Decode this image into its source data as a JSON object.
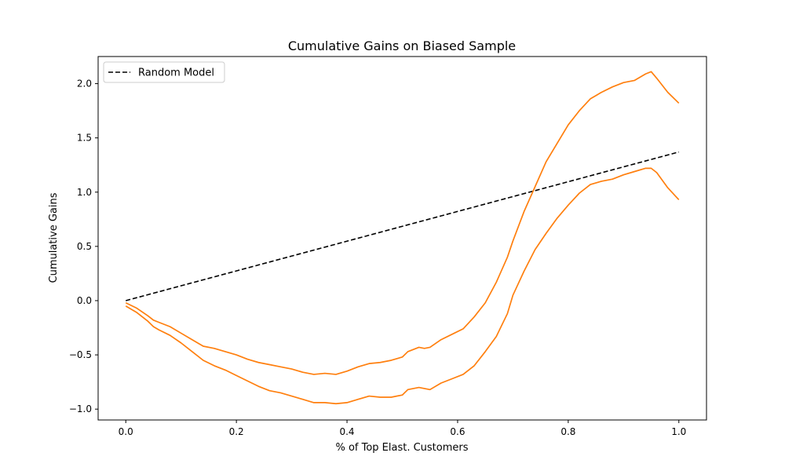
{
  "chart_data": {
    "type": "line",
    "title": "Cumulative Gains on Biased Sample",
    "xlabel": "% of Top Elast. Customers",
    "ylabel": "Cumulative Gains",
    "xlim": [
      -0.05,
      1.05
    ],
    "ylim": [
      -1.1,
      2.25
    ],
    "x_ticks": [
      0.0,
      0.2,
      0.4,
      0.6,
      0.8,
      1.0
    ],
    "x_tick_labels": [
      "0.0",
      "0.2",
      "0.4",
      "0.6",
      "0.8",
      "1.0"
    ],
    "y_ticks": [
      -1.0,
      -0.5,
      0.0,
      0.5,
      1.0,
      1.5,
      2.0
    ],
    "y_tick_labels": [
      "−1.0",
      "−0.5",
      "0.0",
      "0.5",
      "1.0",
      "1.5",
      "2.0"
    ],
    "grid": false,
    "legend_position": "top-left",
    "legend_entries": [
      "Random Model"
    ],
    "series": [
      {
        "name": "Random Model",
        "color": "#000000",
        "style": "dashed",
        "x": [
          0.0,
          1.0
        ],
        "y": [
          0.0,
          1.37
        ]
      },
      {
        "color": "#ff7f0e",
        "style": "solid",
        "x": [
          0.0,
          0.02,
          0.04,
          0.05,
          0.06,
          0.08,
          0.1,
          0.12,
          0.14,
          0.16,
          0.18,
          0.2,
          0.22,
          0.24,
          0.26,
          0.28,
          0.3,
          0.32,
          0.34,
          0.36,
          0.38,
          0.4,
          0.42,
          0.44,
          0.46,
          0.48,
          0.5,
          0.51,
          0.53,
          0.54,
          0.55,
          0.57,
          0.59,
          0.61,
          0.63,
          0.65,
          0.67,
          0.69,
          0.7,
          0.72,
          0.74,
          0.76,
          0.78,
          0.8,
          0.82,
          0.84,
          0.86,
          0.88,
          0.9,
          0.92,
          0.94,
          0.95,
          0.96,
          0.98,
          1.0
        ],
        "y": [
          -0.02,
          -0.07,
          -0.14,
          -0.18,
          -0.2,
          -0.24,
          -0.3,
          -0.36,
          -0.42,
          -0.44,
          -0.47,
          -0.5,
          -0.54,
          -0.57,
          -0.59,
          -0.61,
          -0.63,
          -0.66,
          -0.68,
          -0.67,
          -0.68,
          -0.65,
          -0.61,
          -0.58,
          -0.57,
          -0.55,
          -0.52,
          -0.47,
          -0.43,
          -0.44,
          -0.43,
          -0.36,
          -0.31,
          -0.26,
          -0.15,
          -0.02,
          0.17,
          0.4,
          0.55,
          0.82,
          1.05,
          1.28,
          1.45,
          1.62,
          1.75,
          1.86,
          1.92,
          1.97,
          2.01,
          2.03,
          2.09,
          2.11,
          2.05,
          1.92,
          1.82
        ]
      },
      {
        "color": "#ff7f0e",
        "style": "solid",
        "x": [
          0.0,
          0.02,
          0.04,
          0.05,
          0.06,
          0.08,
          0.1,
          0.12,
          0.14,
          0.16,
          0.18,
          0.2,
          0.22,
          0.24,
          0.26,
          0.28,
          0.3,
          0.32,
          0.34,
          0.36,
          0.38,
          0.4,
          0.42,
          0.44,
          0.46,
          0.48,
          0.5,
          0.51,
          0.53,
          0.54,
          0.55,
          0.57,
          0.59,
          0.61,
          0.63,
          0.65,
          0.67,
          0.69,
          0.7,
          0.72,
          0.74,
          0.76,
          0.78,
          0.8,
          0.82,
          0.84,
          0.86,
          0.88,
          0.9,
          0.92,
          0.94,
          0.95,
          0.96,
          0.98,
          1.0
        ],
        "y": [
          -0.05,
          -0.11,
          -0.19,
          -0.24,
          -0.27,
          -0.32,
          -0.39,
          -0.47,
          -0.55,
          -0.6,
          -0.64,
          -0.69,
          -0.74,
          -0.79,
          -0.83,
          -0.85,
          -0.88,
          -0.91,
          -0.94,
          -0.94,
          -0.95,
          -0.94,
          -0.91,
          -0.88,
          -0.89,
          -0.89,
          -0.87,
          -0.82,
          -0.8,
          -0.81,
          -0.82,
          -0.76,
          -0.72,
          -0.68,
          -0.6,
          -0.47,
          -0.33,
          -0.12,
          0.05,
          0.27,
          0.47,
          0.62,
          0.76,
          0.88,
          0.99,
          1.07,
          1.1,
          1.12,
          1.16,
          1.19,
          1.22,
          1.22,
          1.18,
          1.04,
          0.93
        ]
      }
    ]
  }
}
